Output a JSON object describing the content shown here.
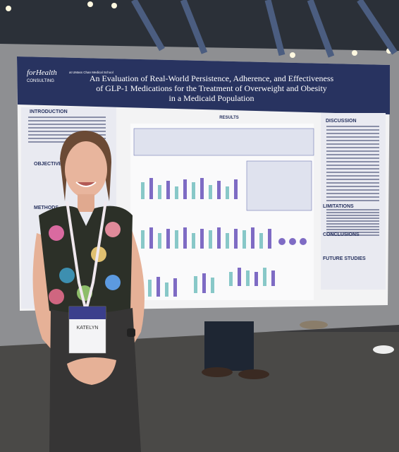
{
  "logo": {
    "brand": "forHealth",
    "sub": "CONSULTING",
    "school": "at UMass Chan Medical School"
  },
  "poster": {
    "title_lines": [
      "An Evaluation of Real-World Persistence, Adherence, and Effectiveness",
      "of GLP-1 Medications for the Treatment of Overweight and Obesity",
      "in a Medicaid Population"
    ],
    "sections": {
      "introduction": "INTRODUCTION",
      "objective": "OBJECTIVE",
      "methods": "METHODS",
      "results": "RESULTS",
      "discussion": "DISCUSSION",
      "limitations": "LIMITATIONS",
      "conclusions": "CONCLUSIONS",
      "future": "FUTURE STUDIES"
    }
  },
  "badge": {
    "name": "KATELYN"
  }
}
